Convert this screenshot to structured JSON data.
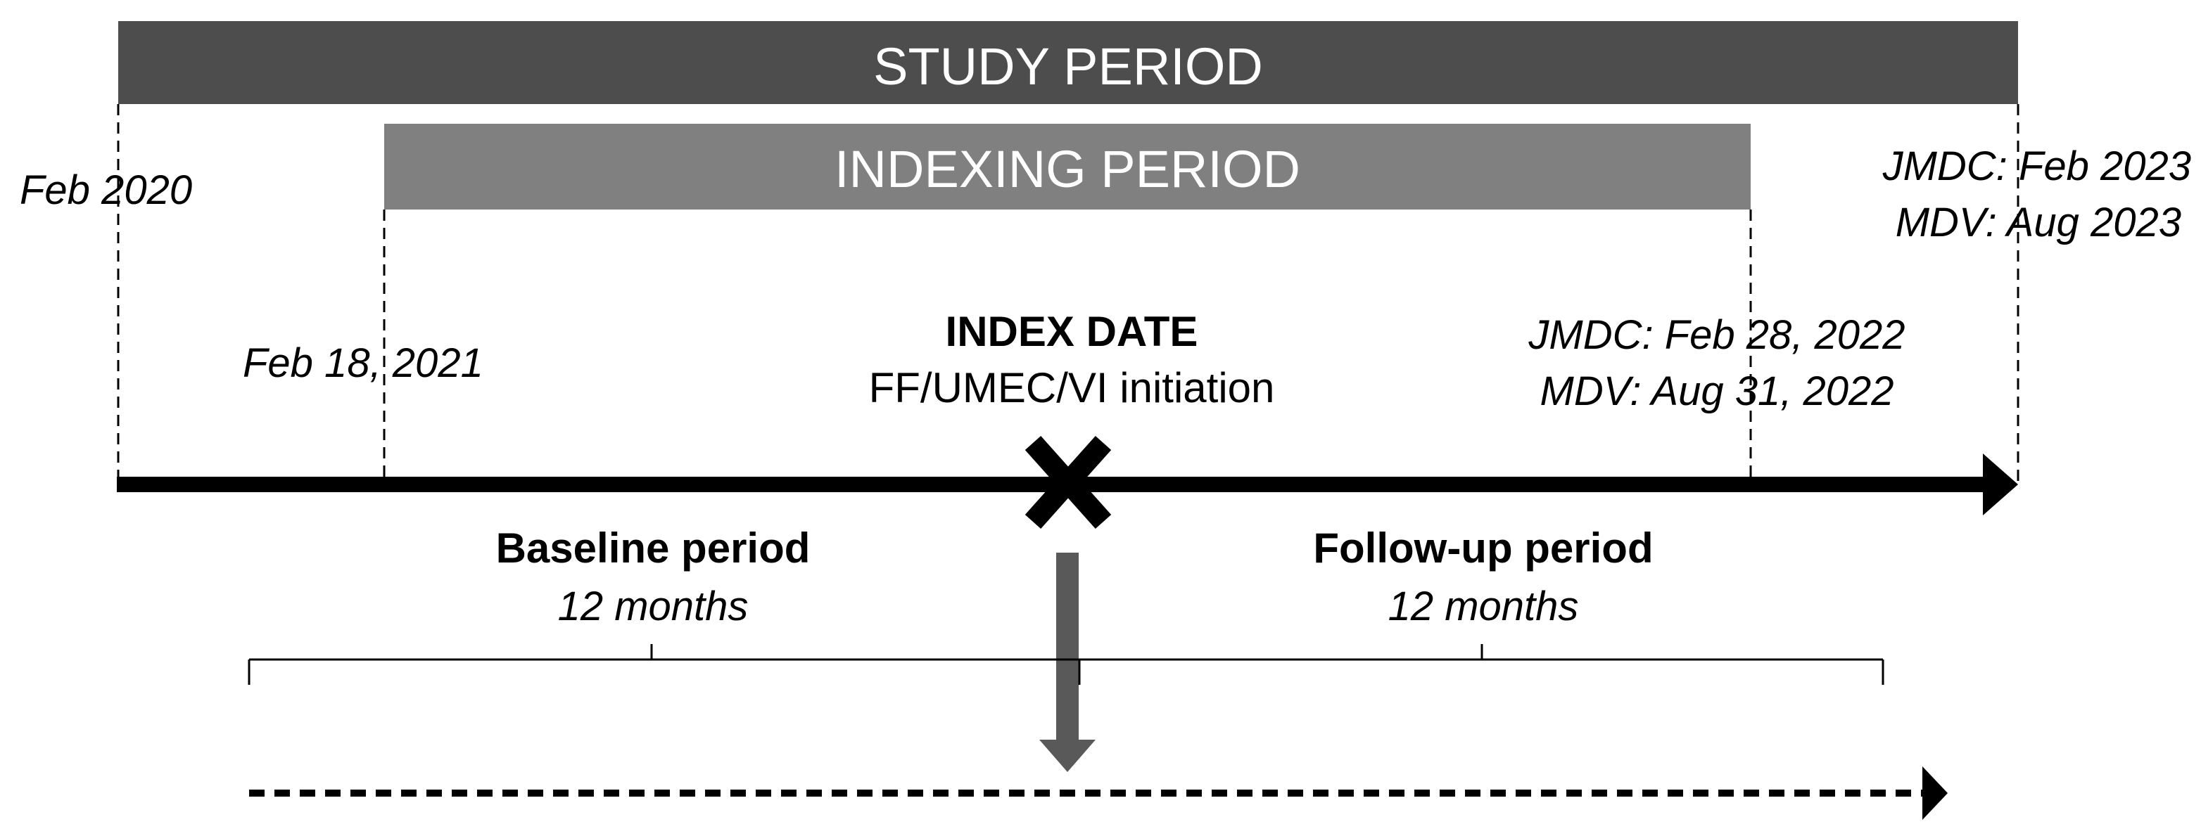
{
  "study_period": {
    "label": "STUDY PERIOD"
  },
  "indexing_period": {
    "label": "INDEXING PERIOD"
  },
  "dates": {
    "study_start": "Feb 2020",
    "index_start": "Feb 18, 2021",
    "index_end_jmdc": "JMDC: Feb 28, 2022",
    "index_end_mdv": "MDV: Aug 31, 2022",
    "study_end_jmdc": "JMDC: Feb 2023",
    "study_end_mdv": "MDV: Aug 2023"
  },
  "index_date": {
    "title": "INDEX DATE",
    "subtitle": "FF/UMEC/VI initiation"
  },
  "baseline": {
    "title": "Baseline period",
    "duration": "12 months"
  },
  "followup": {
    "title": "Follow-up period",
    "duration": "12 months"
  },
  "colors": {
    "study_bar": "#4d4d4d",
    "indexing_bar": "#808080",
    "bar_text": "#ffffff",
    "timeline": "#000000",
    "down_arrow": "#595959"
  }
}
